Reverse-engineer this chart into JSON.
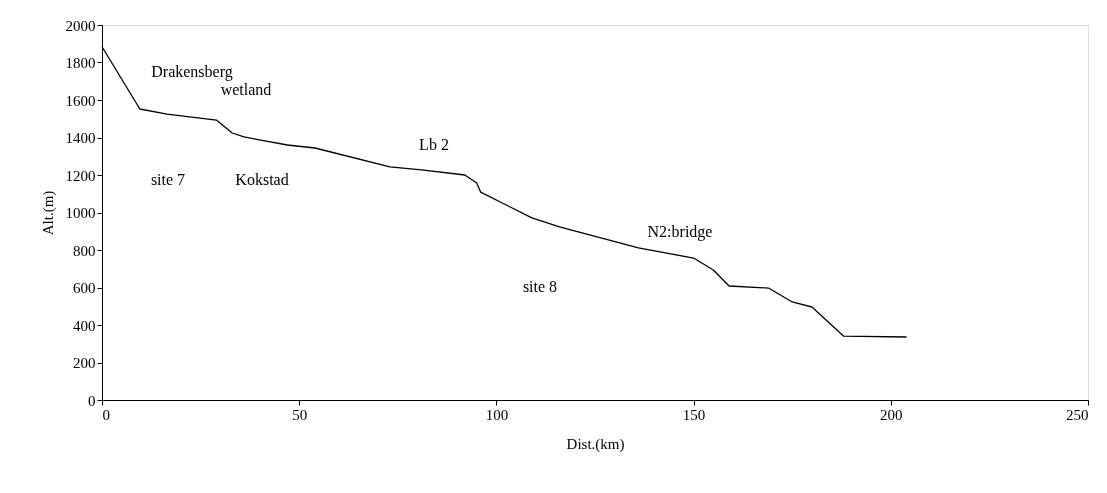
{
  "chart_data": {
    "type": "line",
    "xlabel": "Dist.(km)",
    "ylabel": "Alt.(m)",
    "x": [
      0,
      9.6,
      16.5,
      29,
      33,
      36,
      47,
      54,
      73,
      81,
      92,
      95,
      96,
      109,
      116,
      136,
      150,
      155,
      159,
      169,
      175,
      180,
      188,
      204
    ],
    "series": [
      {
        "color": "#000000",
        "values": [
          1884,
          1552,
          1525,
          1493,
          1424,
          1403,
          1360,
          1344,
          1243,
          1227,
          1200,
          1157,
          1109,
          971,
          923,
          811,
          757,
          693,
          608,
          597,
          523,
          496,
          341,
          336
        ]
      }
    ],
    "xlim": [
      0,
      250
    ],
    "xticks": [
      0,
      50,
      100,
      150,
      200,
      250
    ],
    "ylim": [
      0,
      2000
    ],
    "yticks": [
      0,
      200,
      400,
      600,
      800,
      1000,
      1200,
      1400,
      1600,
      1800,
      2000
    ],
    "grid": false,
    "marker": "none",
    "line_style": "solid",
    "annotations": [
      "Drakensberg",
      "wetland",
      "site 7",
      "Kokstad",
      "Lb 2",
      "N2:bridge",
      "site 8"
    ]
  }
}
